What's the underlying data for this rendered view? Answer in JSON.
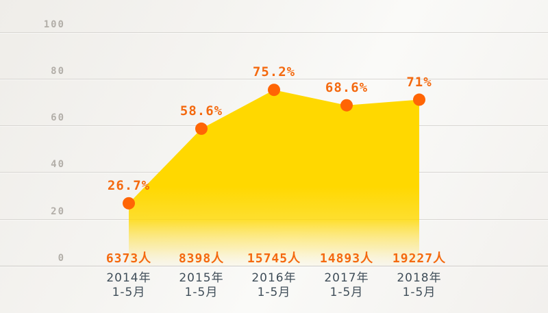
{
  "colors": {
    "accent_orange_text": "#f4690f",
    "dot_orange": "#ff6505",
    "area_yellow": "#ffd800",
    "tick_gray": "#b2aea8",
    "category_dark": "#3f4d58",
    "gridline": "#d7d5d1",
    "baseline": "#cdcac6"
  },
  "chart_data": {
    "type": "area",
    "title": "",
    "xlabel": "",
    "ylabel": "",
    "legend": false,
    "grid": true,
    "ylim": [
      0,
      100
    ],
    "y_ticks": [
      0,
      20,
      40,
      60,
      80,
      100
    ],
    "categories": [
      {
        "line1": "2014年",
        "line2": "1-5月"
      },
      {
        "line1": "2015年",
        "line2": "1-5月"
      },
      {
        "line1": "2016年",
        "line2": "1-5月"
      },
      {
        "line1": "2017年",
        "line2": "1-5月"
      },
      {
        "line1": "2018年",
        "line2": "1-5月"
      }
    ],
    "values": [
      26.7,
      58.6,
      75.2,
      68.6,
      71
    ],
    "point_labels": [
      "26.7%",
      "58.6%",
      "75.2%",
      "68.6%",
      "71%"
    ],
    "counts": [
      6373,
      8398,
      15745,
      14893,
      19227
    ],
    "count_labels": [
      "6373人",
      "8398人",
      "15745人",
      "14893人",
      "19227人"
    ]
  }
}
